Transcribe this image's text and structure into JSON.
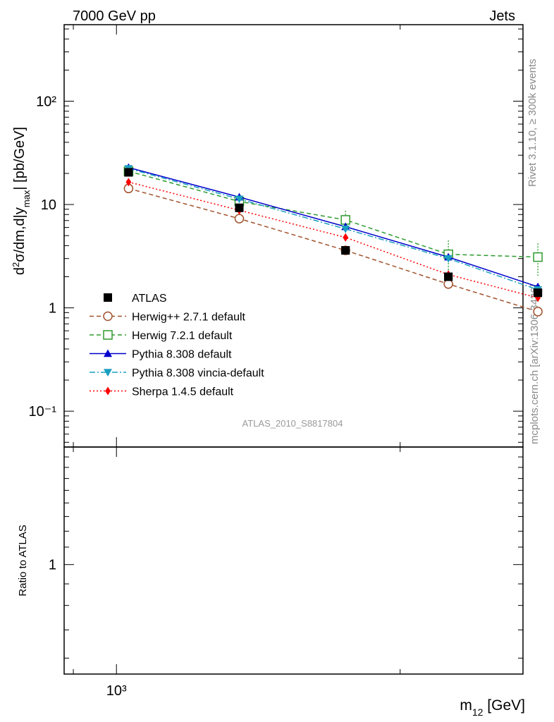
{
  "header": {
    "left": "7000 GeV pp",
    "right": "Jets"
  },
  "side_text": {
    "rivet": "Rivet 3.1.10, ≥ 300k events",
    "mcplots": "mcplots.cern.ch [arXiv:1306.3436]"
  },
  "analysis_id": "ATLAS_2010_S8817804",
  "chart_data": [
    {
      "type": "line",
      "scale": {
        "x": "log",
        "y": "log"
      },
      "ylabel": "d²σ/dm,d|y_max| [pb/GeV]",
      "xlabel": "m12 [GeV]",
      "xlim": [
        880,
        2700
      ],
      "ylim": [
        0.045,
        550
      ],
      "y_ticks": [
        {
          "value": 0.1,
          "label": "10⁻¹"
        },
        {
          "value": 1,
          "label": "1"
        },
        {
          "value": 10,
          "label": "10"
        },
        {
          "value": 100,
          "label": "10²"
        }
      ],
      "x_ticks": [
        {
          "value": 1000,
          "label": "10³"
        }
      ],
      "x": [
        1030,
        1350,
        1750,
        2250,
        2800
      ],
      "legend_position": "middle-left",
      "series": [
        {
          "name": "ATLAS",
          "style": "data",
          "color": "#000000",
          "marker": "square-filled",
          "values": [
            20.5,
            9.3,
            3.6,
            2.0,
            1.4
          ],
          "err": [
            0.8,
            0.5,
            0.3,
            0.3,
            0.25
          ]
        },
        {
          "name": "Herwig++ 2.7.1 default",
          "color": "#a0522d",
          "dash": "6,4",
          "marker": "circle-open",
          "values": [
            14.3,
            7.3,
            3.6,
            1.7,
            0.92
          ]
        },
        {
          "name": "Herwig 7.2.1 default",
          "color": "#2e9b2e",
          "dash": "6,4",
          "marker": "square-open",
          "values": [
            21.0,
            10.7,
            7.1,
            3.3,
            3.1
          ],
          "err": [
            1.5,
            1.0,
            1.6,
            1.2,
            1.1
          ]
        },
        {
          "name": "Pythia 8.308 default",
          "color": "#0000cc",
          "dash": "",
          "marker": "triangle-up",
          "values": [
            22.8,
            11.8,
            6.1,
            3.1,
            1.6
          ]
        },
        {
          "name": "Pythia 8.308 vincia-default",
          "color": "#1a9fc0",
          "dash": "8,3,2,3",
          "marker": "triangle-down",
          "values": [
            22.3,
            11.3,
            5.8,
            3.0,
            1.5
          ]
        },
        {
          "name": "Sherpa 1.4.5 default",
          "color": "#ff0000",
          "dash": "2,3",
          "marker": "diamond",
          "values": [
            16.5,
            8.8,
            4.8,
            2.1,
            1.25
          ]
        }
      ]
    },
    {
      "type": "line",
      "scale": {
        "x": "log",
        "y": "log"
      },
      "ylabel": "Ratio to ATLAS",
      "xlabel": "m12 [GeV]",
      "ylim": [
        0.55,
        1.9
      ],
      "y_ticks": [
        {
          "value": 1,
          "label": "1"
        }
      ],
      "series": []
    }
  ]
}
